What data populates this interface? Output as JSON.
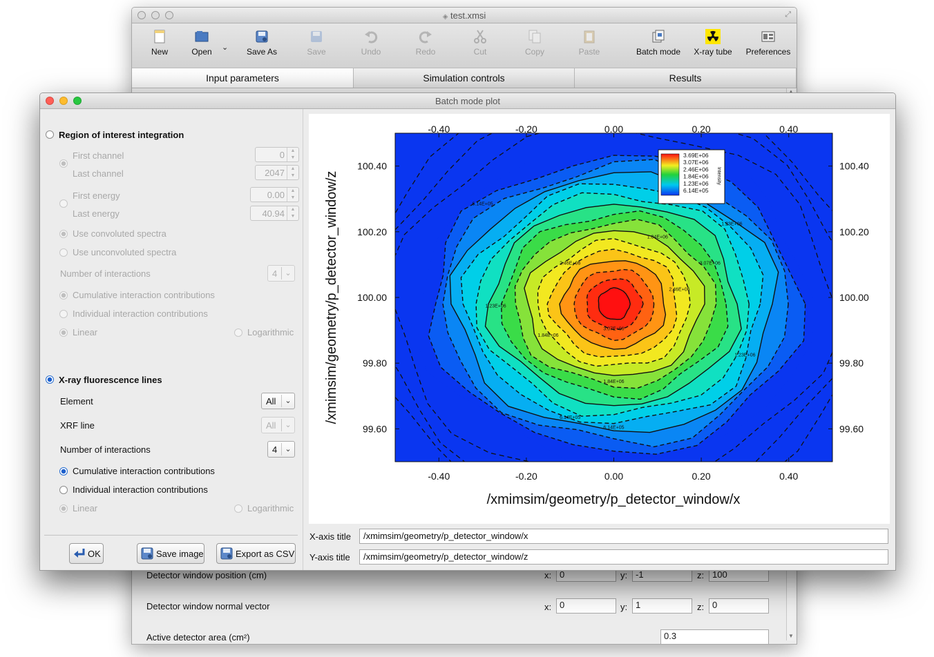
{
  "main_window": {
    "title": "test.xmsi",
    "toolbar": [
      {
        "label": "New",
        "icon": "new-document-icon",
        "enabled": true
      },
      {
        "label": "Open",
        "icon": "open-folder-icon",
        "enabled": true
      },
      {
        "label": "Save As",
        "icon": "save-as-icon",
        "enabled": true
      },
      {
        "label": "Save",
        "icon": "save-icon",
        "enabled": false
      },
      {
        "label": "Undo",
        "icon": "undo-icon",
        "enabled": false
      },
      {
        "label": "Redo",
        "icon": "redo-icon",
        "enabled": false
      },
      {
        "label": "Cut",
        "icon": "scissors-icon",
        "enabled": false
      },
      {
        "label": "Copy",
        "icon": "copy-icon",
        "enabled": false
      },
      {
        "label": "Paste",
        "icon": "paste-icon",
        "enabled": false
      },
      {
        "label": "Batch mode",
        "icon": "batch-mode-icon",
        "enabled": true
      },
      {
        "label": "X-ray tube",
        "icon": "radiation-icon",
        "enabled": true
      },
      {
        "label": "Preferences",
        "icon": "preferences-icon",
        "enabled": true
      }
    ],
    "tabs": [
      "Input parameters",
      "Simulation controls",
      "Results"
    ],
    "active_tab": 0,
    "detector_window_position": {
      "label": "Detector window position (cm)",
      "x": "0",
      "y": "-1",
      "z": "100"
    },
    "detector_window_normal": {
      "label": "Detector window normal vector",
      "x": "0",
      "y": "1",
      "z": "0"
    },
    "active_detector_area": {
      "label": "Active detector area (cm²)",
      "value": "0.3"
    },
    "axis_letters": {
      "x": "x:",
      "y": "y:",
      "z": "z:"
    }
  },
  "dialog": {
    "title": "Batch mode plot",
    "roi": {
      "label": "Region of interest integration",
      "first_channel_label": "First channel",
      "first_channel": "0",
      "last_channel_label": "Last channel",
      "last_channel": "2047",
      "first_energy_label": "First energy",
      "first_energy": "0.00",
      "last_energy_label": "Last energy",
      "last_energy": "40.94",
      "convoluted": "Use convoluted spectra",
      "unconvoluted": "Use unconvoluted spectra",
      "num_interactions_label": "Number of interactions",
      "num_interactions": "4",
      "cumulative": "Cumulative interaction contributions",
      "individual": "Individual interaction contributions",
      "linear": "Linear",
      "logarithmic": "Logarithmic"
    },
    "xrf": {
      "label": "X-ray fluorescence lines",
      "element_label": "Element",
      "element": "All",
      "xrf_line_label": "XRF line",
      "xrf_line": "All",
      "num_interactions_label": "Number of interactions",
      "num_interactions": "4",
      "cumulative": "Cumulative interaction contributions",
      "individual": "Individual interaction contributions",
      "linear": "Linear",
      "logarithmic": "Logarithmic"
    },
    "buttons": {
      "ok": "OK",
      "save_image": "Save image",
      "export_csv": "Export as CSV"
    },
    "x_axis_title_label": "X-axis title",
    "y_axis_title_label": "Y-axis title",
    "x_axis_title": "/xmimsim/geometry/p_detector_window/x",
    "y_axis_title": "/xmimsim/geometry/p_detector_window/z"
  },
  "chart_data": {
    "type": "heatmap",
    "subtype": "filled contour",
    "xlabel": "/xmimsim/geometry/p_detector_window/x",
    "ylabel": "/xmimsim/geometry/p_detector_window/z",
    "xlim": [
      -0.5,
      0.5
    ],
    "ylim": [
      99.5,
      100.5
    ],
    "x_ticks": [
      "-0.40",
      "-0.20",
      "0.00",
      "0.20",
      "0.40"
    ],
    "y_ticks": [
      "99.60",
      "99.80",
      "100.00",
      "100.20",
      "100.40"
    ],
    "peak": {
      "x": 0.0,
      "z": 99.98,
      "value": 3690000
    },
    "legend": {
      "title": "Intensity",
      "placement": "top-right",
      "ticks": [
        "3.69E+06",
        "3.07E+06",
        "2.46E+06",
        "1.84E+06",
        "1.23E+06",
        "6.14E+05"
      ]
    },
    "contour_labels": [
      "6.14E+05",
      "1.23E+06",
      "1.84E+06",
      "2.46E+06",
      "3.07E+06",
      "3.69E+06"
    ],
    "colors": {
      "low": "#0a36f0",
      "mid": "#22d23c",
      "high": "#ff1010"
    }
  }
}
